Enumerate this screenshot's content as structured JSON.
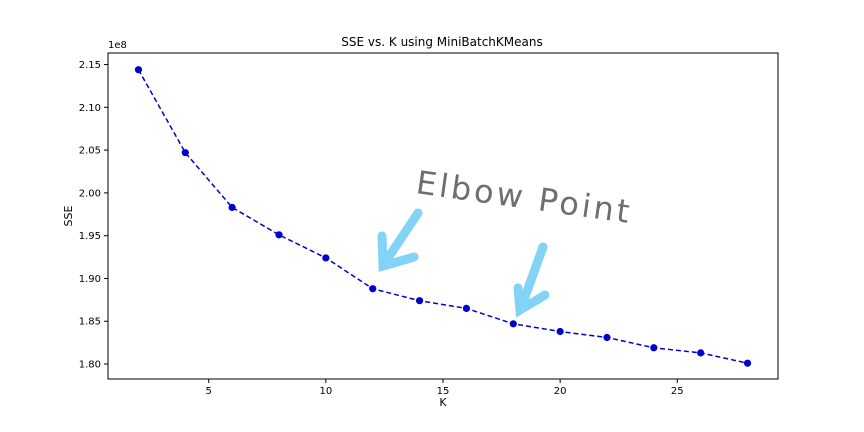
{
  "chart_data": {
    "type": "line",
    "title": "SSE vs. K using MiniBatchKMeans",
    "xlabel": "K",
    "ylabel": "SSE",
    "y_multiplier_label": "1e8",
    "xlim": [
      0.7,
      29.3
    ],
    "ylim": [
      1.7825,
      2.1635
    ],
    "x_ticks": [
      5,
      10,
      15,
      20,
      25
    ],
    "y_ticks": [
      1.8,
      1.85,
      1.9,
      1.95,
      2.0,
      2.05,
      2.1,
      2.15
    ],
    "y_tick_labels": [
      "1.80",
      "1.85",
      "1.90",
      "1.95",
      "2.00",
      "2.05",
      "2.10",
      "2.15"
    ],
    "grid": false,
    "series": [
      {
        "x": [
          2,
          4,
          6,
          8,
          10,
          12,
          14,
          16,
          18,
          20,
          22,
          24,
          26,
          28
        ],
        "y": [
          2.144,
          2.047,
          1.983,
          1.951,
          1.924,
          1.888,
          1.874,
          1.865,
          1.847,
          1.838,
          1.831,
          1.819,
          1.813,
          1.801
        ],
        "color": "#0000cc",
        "line_style": "dashed",
        "marker": "circle"
      }
    ],
    "annotations": [
      {
        "text": "Elbow Point",
        "color": "#555555",
        "arrow_color": "#82d3f5"
      }
    ]
  }
}
